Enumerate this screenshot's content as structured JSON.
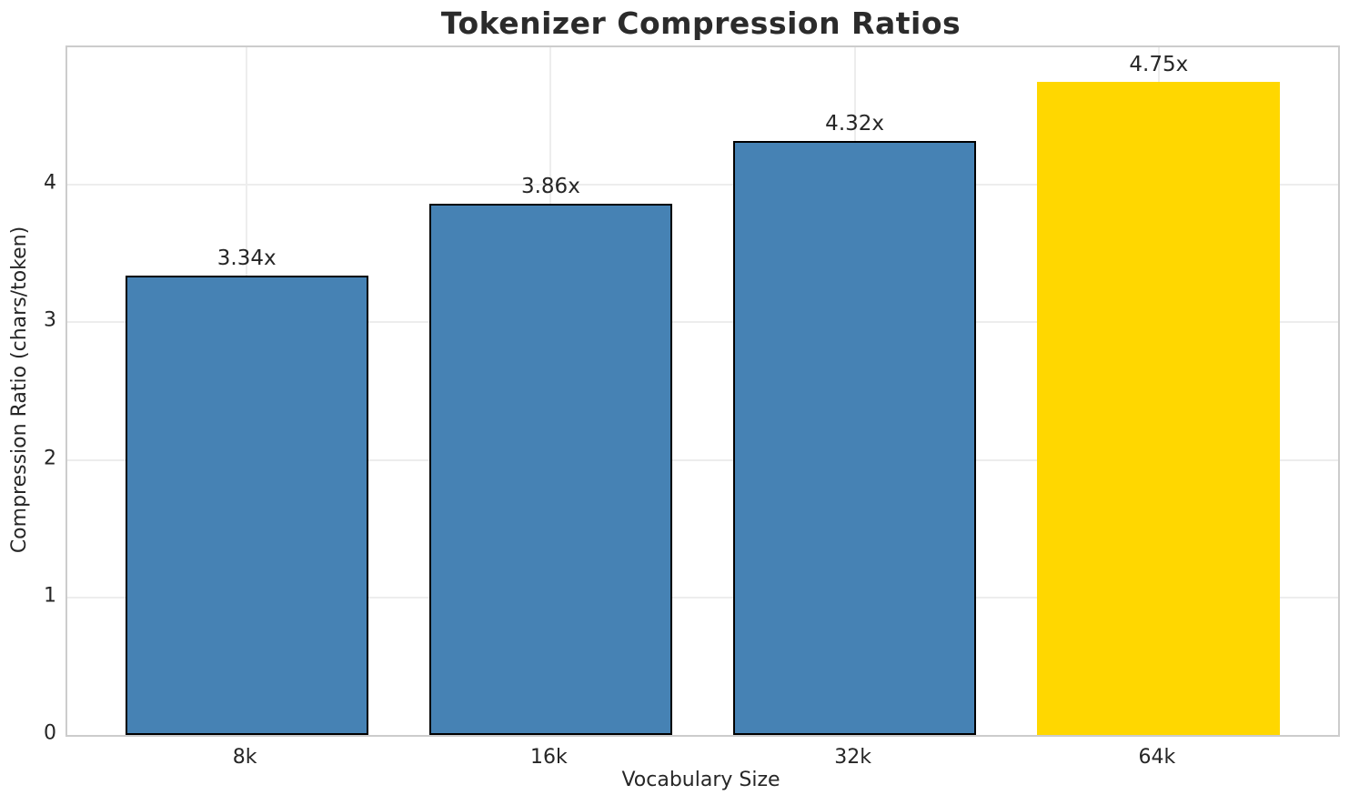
{
  "chart_data": {
    "type": "bar",
    "title": "Tokenizer Compression Ratios",
    "xlabel": "Vocabulary Size",
    "ylabel": "Compression Ratio (chars/token)",
    "categories": [
      "8k",
      "16k",
      "32k",
      "64k"
    ],
    "values": [
      3.34,
      3.86,
      4.32,
      4.75
    ],
    "bar_labels": [
      "3.34x",
      "3.86x",
      "4.32x",
      "4.75x"
    ],
    "bar_colors": [
      "#4682B4",
      "#4682B4",
      "#4682B4",
      "#FFD700"
    ],
    "bar_edge_colors": [
      "#000000",
      "#000000",
      "#000000",
      "none"
    ],
    "base_color": "#4682B4",
    "highlight_color": "#FFD700",
    "ylim": [
      0,
      5
    ],
    "yticks": [
      0,
      1,
      2,
      3,
      4
    ],
    "grid": "both",
    "grid_color": "#ededed",
    "spine_color": "#cccccc",
    "legend_position": "none"
  }
}
